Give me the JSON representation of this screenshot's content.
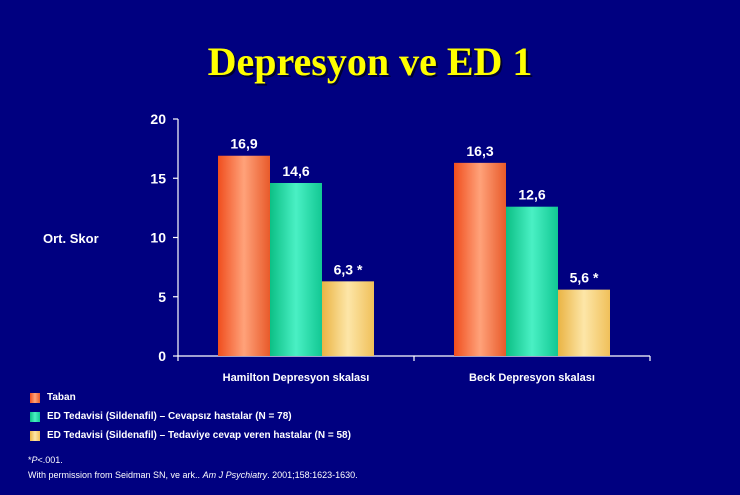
{
  "title": "Depresyon ve ED 1",
  "colors": {
    "background": "#000080",
    "title": "#ffff00",
    "series": [
      "#f26b3a",
      "#1ad6a0",
      "#f4cc6a"
    ]
  },
  "chart_data": {
    "type": "bar",
    "ylabel": "Ort. Skor",
    "ylim": [
      0,
      20
    ],
    "yticks": [
      0,
      5,
      10,
      15,
      20
    ],
    "categories": [
      "Hamilton Depresyon skalası",
      "Beck Depresyon skalası"
    ],
    "series": [
      {
        "name": "Taban",
        "values": [
          16.9,
          16.3
        ],
        "labels": [
          "16,9",
          "16,3"
        ]
      },
      {
        "name": "ED Tedavisi (Sildenafil) – Cevapsız hastalar (N = 78)",
        "values": [
          14.6,
          12.6
        ],
        "labels": [
          "14,6",
          "12,6"
        ]
      },
      {
        "name": "ED Tedavisi (Sildenafil) – Tedaviye cevap veren hastalar (N = 58)",
        "values": [
          6.3,
          5.6
        ],
        "labels": [
          "6,3 *",
          "5,6 *"
        ]
      }
    ],
    "grid": false,
    "legend_position": "bottom-left"
  },
  "footnote": {
    "pvalue_p": "P",
    "pvalue_prefix": "*",
    "pvalue_rest": "<.001.",
    "citation_prefix": "With permission from Seidman SN, ve ark.. ",
    "citation_journal": "Am J Psychiatry",
    "citation_suffix": ". 2001;158:1623-1630."
  }
}
